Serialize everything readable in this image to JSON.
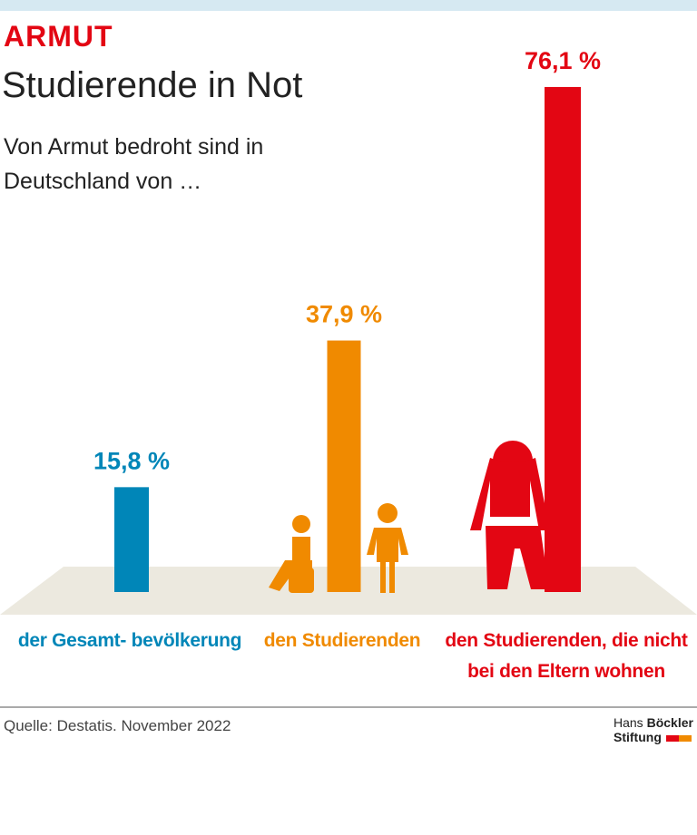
{
  "chart_data": {
    "type": "bar",
    "kicker": "ARMUT",
    "title": "Studierende in Not",
    "subtitle": "Von Armut bedroht sind in\nDeutschland von …",
    "categories": [
      "der Gesamt-\nbevölkerung",
      "den\nStudierenden",
      "den Studierenden, die nicht\nbei den Eltern wohnen"
    ],
    "values": [
      15.8,
      37.9,
      76.1
    ],
    "value_labels": [
      "15,8 %",
      "37,9 %",
      "76,1 %"
    ],
    "colors": [
      "#0086b8",
      "#f08a00",
      "#e30613"
    ],
    "source": "Quelle: Destatis. November 2022",
    "logo": {
      "line1": "Hans",
      "line1_bold": "Böckler",
      "line2": "Stiftung"
    }
  }
}
